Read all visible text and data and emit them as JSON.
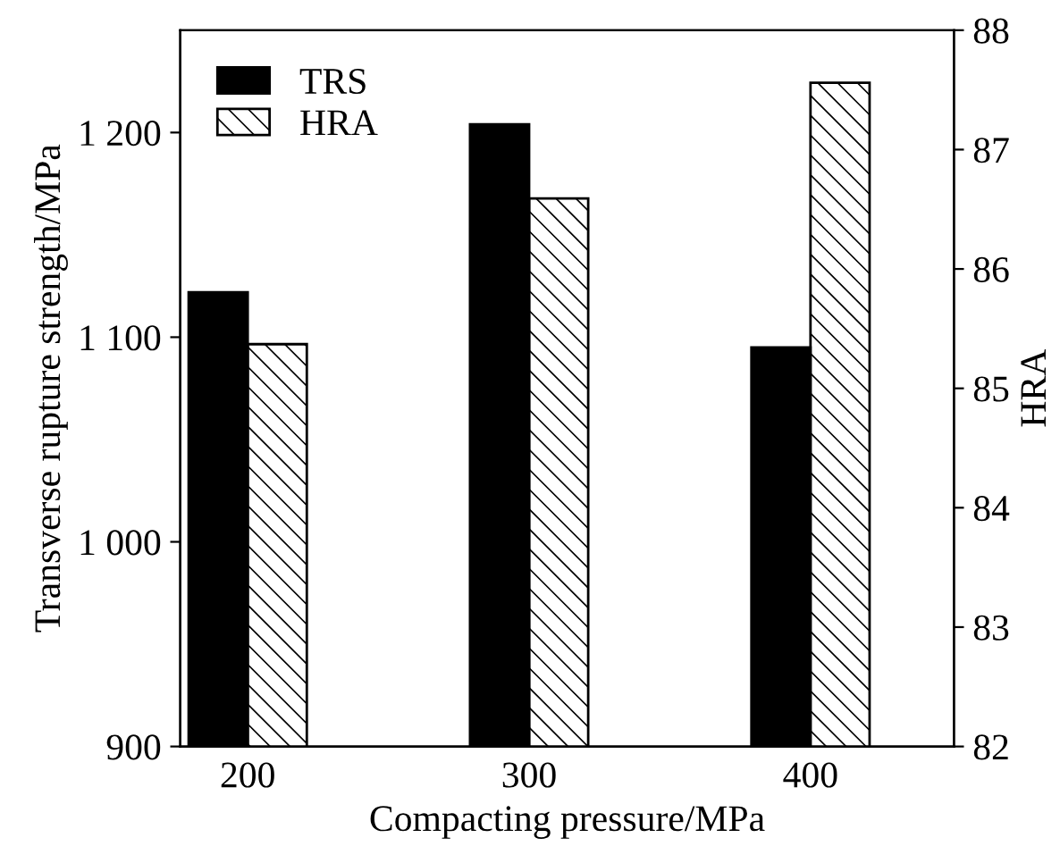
{
  "chart_data": {
    "type": "bar",
    "xlabel": "Compacting pressure/MPa",
    "ylabel": "Transverse rupture strength/MPa",
    "y2label": "HRA",
    "categories": [
      "200",
      "300",
      "400"
    ],
    "series": [
      {
        "name": "TRS",
        "color": "#000000",
        "values": [
          1122,
          1204,
          1095
        ]
      },
      {
        "name": "HRA",
        "color": "#000000",
        "axis": "y2",
        "values": [
          85.37,
          86.59,
          87.56
        ]
      }
    ],
    "ylim": [
      900,
      1250
    ],
    "yticks": [
      900,
      {
        "value": 1000,
        "label": "1 000"
      },
      {
        "value": 1100,
        "label": "1 100"
      },
      {
        "value": 1200,
        "label": "1 200"
      }
    ],
    "y2lim": [
      82,
      88
    ],
    "y2ticks": [
      82,
      83,
      84,
      85,
      86,
      87,
      88
    ],
    "legend": "top left",
    "grid": false
  }
}
